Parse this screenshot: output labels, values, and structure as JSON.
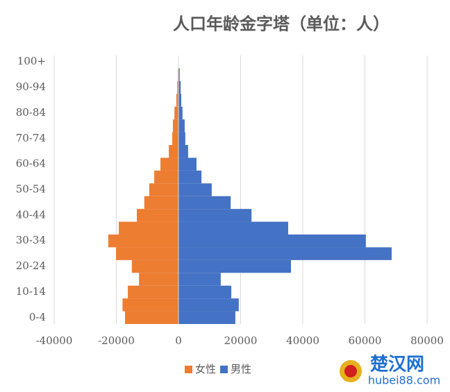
{
  "chart_data": {
    "type": "bar",
    "orientation": "horizontal",
    "title": "人口年龄金字塔（单位：人）",
    "categories": [
      "0-4",
      null,
      "10-14",
      null,
      "20-24",
      null,
      "30-34",
      null,
      "40-44",
      null,
      "50-54",
      null,
      "60-64",
      null,
      "70-74",
      null,
      "80-84",
      null,
      "90-94",
      null,
      "100+"
    ],
    "series": [
      {
        "name": "女性",
        "color": "#ed7d31",
        "values": [
          -17200,
          -18000,
          -16300,
          -12700,
          -15000,
          -20100,
          -22600,
          -19200,
          -13400,
          -11000,
          -9400,
          -7800,
          -5800,
          -3100,
          -2000,
          -1800,
          -1300,
          -700,
          -400,
          -200,
          -100
        ]
      },
      {
        "name": "男性",
        "color": "#4472c4",
        "values": [
          18300,
          19400,
          17000,
          13600,
          36200,
          68600,
          60300,
          35300,
          23500,
          16800,
          10700,
          7400,
          5800,
          3100,
          2200,
          2000,
          1300,
          900,
          700,
          400,
          100
        ]
      }
    ],
    "xlim": [
      -40000,
      80000
    ],
    "xticks": [
      -40000,
      -20000,
      0,
      20000,
      40000,
      60000,
      80000
    ],
    "grid": true,
    "legend": "bottom",
    "watermark": {
      "name": "楚汉网",
      "url": "hubei88.com"
    }
  }
}
